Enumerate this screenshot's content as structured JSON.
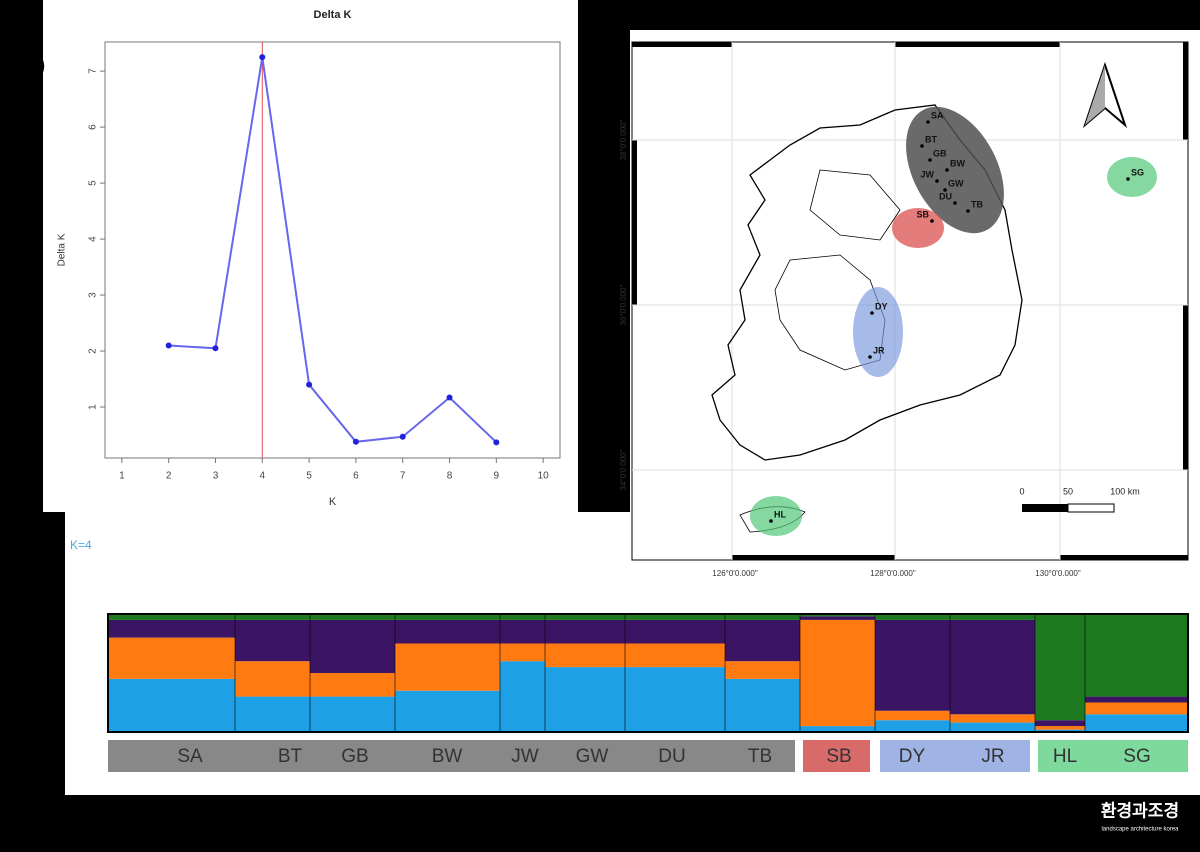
{
  "chart_data": [
    {
      "type": "line",
      "panel": "a)",
      "title": "Delta K",
      "x_label": "K",
      "y_label": "Delta K",
      "x": [
        2,
        3,
        4,
        5,
        6,
        7,
        8,
        9
      ],
      "values": [
        2.1,
        2.05,
        7.25,
        1.4,
        0.38,
        0.47,
        1.17,
        0.37
      ],
      "color": "#6666ee",
      "marker_color": "#2222dd",
      "vline": 4,
      "vline_color": "#e05050",
      "xlim": [
        0.64,
        10.36
      ],
      "xticks": [
        1,
        2,
        3,
        4,
        5,
        6,
        7,
        8,
        9,
        10
      ],
      "ylim": [
        0.09,
        7.52
      ],
      "yticks": [
        1,
        2,
        3,
        4,
        5,
        6,
        7
      ]
    },
    {
      "type": "bar",
      "stacked": true,
      "title": "K=4",
      "categories": [
        "SA",
        "BT",
        "GB",
        "BW",
        "JW",
        "GW",
        "DU",
        "TB",
        "SB",
        "DY",
        "JR",
        "HL",
        "SG"
      ],
      "series": [
        {
          "color": "#1ea0e6",
          "values": [
            45,
            30,
            30,
            35,
            60,
            55,
            55,
            45,
            5,
            10,
            8,
            2,
            15
          ]
        },
        {
          "color": "#ff7a10",
          "values": [
            35,
            30,
            20,
            40,
            15,
            20,
            20,
            15,
            90,
            8,
            7,
            3,
            10
          ]
        },
        {
          "color": "#3c1464",
          "values": [
            15,
            35,
            45,
            20,
            20,
            20,
            20,
            35,
            3,
            77,
            80,
            5,
            5
          ]
        },
        {
          "color": "#1e7a1e",
          "values": [
            5,
            5,
            5,
            5,
            5,
            5,
            5,
            5,
            2,
            5,
            5,
            90,
            70
          ]
        }
      ],
      "ylim": [
        0,
        100
      ]
    }
  ],
  "map": {
    "lon_labels": [
      "126°0'0.000\"",
      "128°0'0.000\"",
      "130°0'0.000\""
    ],
    "lat_labels": [
      "38°0'0.000\"",
      "36°0'0.000\"",
      "34°0'0.000\""
    ],
    "sites": [
      "SA",
      "BT",
      "GB",
      "BW",
      "JW",
      "GW",
      "DU",
      "TB",
      "SB",
      "DY",
      "JR",
      "SG",
      "HL"
    ],
    "scale_labels": [
      "0",
      "50",
      "100 km"
    ]
  },
  "watermark": {
    "title": "환경과조경",
    "subtitle": "landscape architecture korea"
  }
}
